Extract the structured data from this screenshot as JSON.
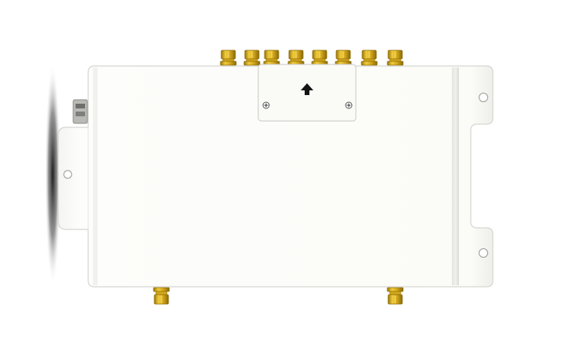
{
  "image": {
    "subject": "rfid-reader-device",
    "background_color": "#ffffff",
    "body_color": "#fbfbf8",
    "outline_color": "#d9d9d4",
    "connector_color": "#d4a81c",
    "connector_dark": "#8e6d0a",
    "shadow_color": "#1e1e1e",
    "icons": [
      "up-arrow-icon",
      "screw-icon",
      "mount-hole-icon",
      "sma-connector-icon",
      "ethernet-port-icon"
    ],
    "top_connector_count": 8,
    "bottom_connector_count": 2
  }
}
